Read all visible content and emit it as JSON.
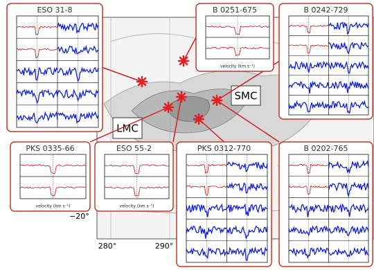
{
  "panels": [
    {
      "title": "ESO 31-8"
    },
    {
      "title": "B 0251-675"
    },
    {
      "title": "B 0242-729"
    },
    {
      "title": "PKS 0335-66"
    },
    {
      "title": "ESO 55-2"
    },
    {
      "title": "PKS 0312-770"
    },
    {
      "title": "B 0202-765"
    }
  ],
  "map": {
    "labels": [
      "LMC",
      "SMC"
    ],
    "ticks": [
      "280°",
      "290°",
      "−20°"
    ]
  },
  "axis_label": "velocity (km s⁻¹)"
}
